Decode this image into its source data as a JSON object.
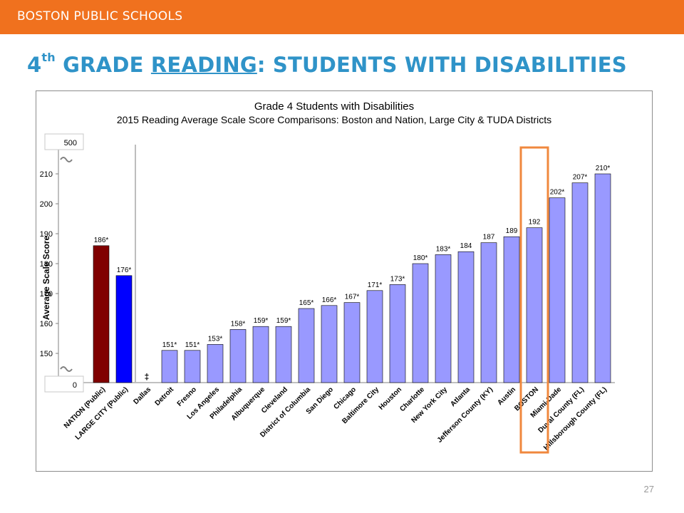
{
  "header": {
    "org_label": "BOSTON PUBLIC SCHOOLS"
  },
  "title": {
    "prefix": "4",
    "sup": "th",
    "middle": " GRADE ",
    "underlined": "READING",
    "rest": ": STUDENTS WITH DISABILITIES"
  },
  "footer": {
    "page_number": "27"
  },
  "colors": {
    "header_bar": "#f0711e",
    "title": "#2f93c8",
    "nation_bar": "#800000",
    "large_city_bar": "#0000ff",
    "district_bar": "#9999ff",
    "boston_highlight": "#f0883e"
  },
  "chart_data": {
    "type": "bar",
    "title": "Grade 4 Students with Disabilities",
    "subtitle": "2015 Reading Average Scale Score Comparisons: Boston and Nation, Large City & TUDA Districts",
    "ylabel": "Average Scale Score",
    "xlabel": "",
    "ylim": [
      145,
      212
    ],
    "yticks": [
      150,
      160,
      170,
      180,
      190,
      200,
      210
    ],
    "ytick_labels": [
      "150",
      "160",
      "170",
      "180",
      "190",
      "200",
      "210"
    ],
    "axis_break_labels": {
      "top": "500",
      "bottom": "0"
    },
    "reporting_standards_not_met_symbol": "‡",
    "highlighted_category": "BOSTON",
    "grid": false,
    "legend": "none",
    "categories": [
      "NATION (Public)",
      "LARGE CITY (Public)",
      "Dallas",
      "Detroit",
      "Fresno",
      "Los Angeles",
      "Philadelphia",
      "Albuquerque",
      "Cleveland",
      "District of Columbia",
      "San Diego",
      "Chicago",
      "Baltimore City",
      "Houston",
      "Charlotte",
      "New York City",
      "Atlanta",
      "Jefferson County (KY)",
      "Austin",
      "BOSTON",
      "Miami-Dade",
      "Duval County (FL)",
      "Hillsborough County (FL)"
    ],
    "values": [
      186,
      176,
      null,
      151,
      151,
      153,
      158,
      159,
      159,
      165,
      166,
      167,
      171,
      173,
      180,
      183,
      184,
      187,
      189,
      192,
      202,
      207,
      210
    ],
    "value_labels": [
      "186*",
      "176*",
      "‡",
      "151*",
      "151*",
      "153*",
      "158*",
      "159*",
      "159*",
      "165*",
      "166*",
      "167*",
      "171*",
      "173*",
      "180*",
      "183*",
      "184",
      "187",
      "189",
      "192",
      "202*",
      "207*",
      "210*"
    ],
    "bar_groups": [
      "nation",
      "large_city",
      "district",
      "district",
      "district",
      "district",
      "district",
      "district",
      "district",
      "district",
      "district",
      "district",
      "district",
      "district",
      "district",
      "district",
      "district",
      "district",
      "district",
      "district",
      "district",
      "district",
      "district"
    ]
  }
}
